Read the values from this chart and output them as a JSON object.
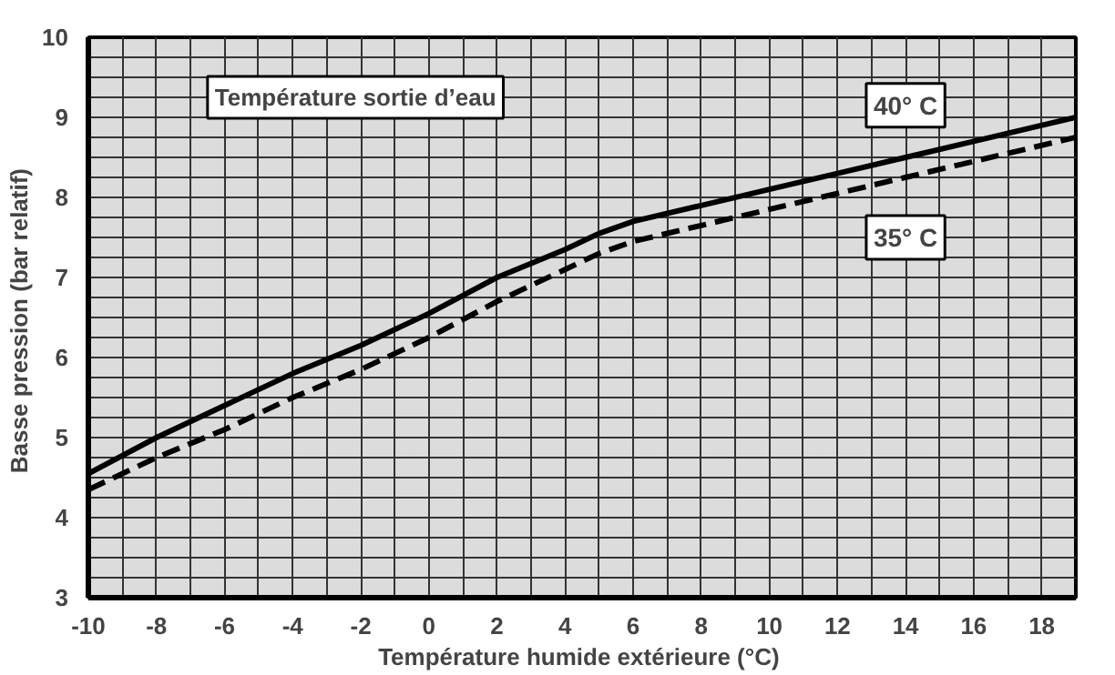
{
  "chart_data": {
    "type": "line",
    "title": "Température sortie d’eau",
    "xlabel": "Température humide extérieure  (°C)",
    "ylabel": "Basse pression  (bar relatif)",
    "x": [
      -10,
      -8,
      -6,
      -4,
      -2,
      0,
      2,
      4,
      5,
      6,
      8,
      10,
      12,
      14,
      16,
      19
    ],
    "series": [
      {
        "name": "40° C",
        "color": "#000000",
        "line_style": "solid",
        "values": [
          4.55,
          5.0,
          5.4,
          5.8,
          6.15,
          6.55,
          7.0,
          7.35,
          7.55,
          7.7,
          7.9,
          8.1,
          8.3,
          8.5,
          8.7,
          9.0
        ]
      },
      {
        "name": "35° C",
        "color": "#000000",
        "line_style": "dashed",
        "values": [
          4.35,
          4.75,
          5.1,
          5.5,
          5.85,
          6.25,
          6.7,
          7.1,
          7.3,
          7.45,
          7.65,
          7.85,
          8.05,
          8.25,
          8.45,
          8.75
        ]
      }
    ],
    "xlim": [
      -10,
      19
    ],
    "ylim": [
      3,
      10
    ],
    "xticks": [
      -10,
      -8,
      -6,
      -4,
      -2,
      0,
      2,
      4,
      6,
      8,
      10,
      12,
      14,
      16,
      18
    ],
    "yticks": [
      3,
      4,
      5,
      6,
      7,
      8,
      9,
      10
    ],
    "grid": true,
    "marker": "none"
  }
}
